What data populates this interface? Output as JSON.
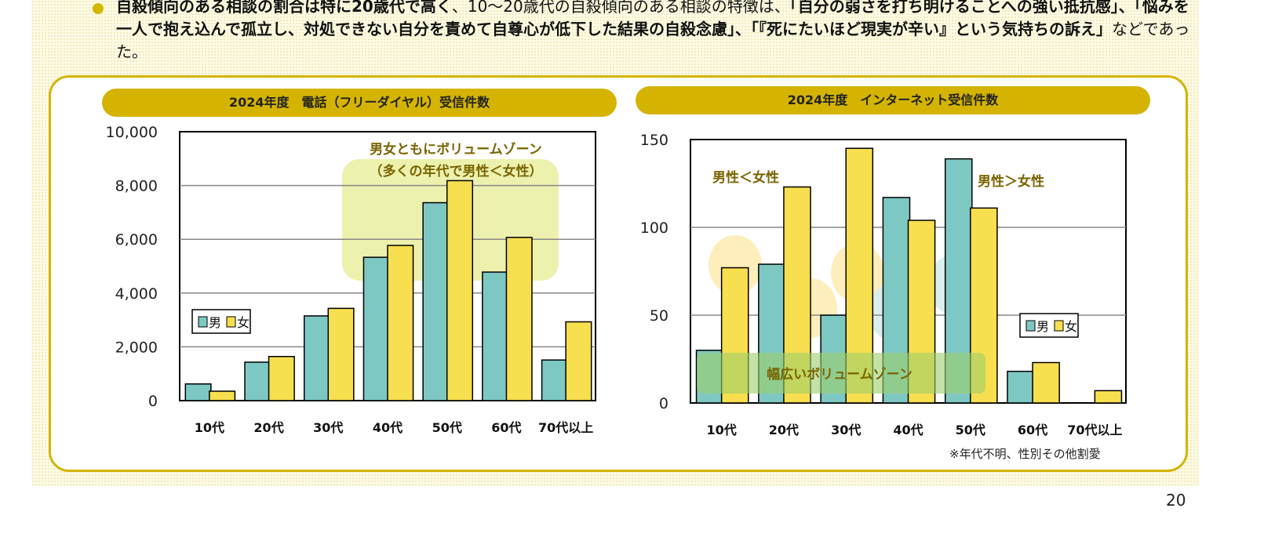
{
  "summary": {
    "bold1": "自殺傾向のある相談の割合は特に20歳代で高く",
    "normal1": "、10〜20歳代の自殺傾向のある相談の特徴は、",
    "bold2": "「自分の弱さを打ち明けることへの強い抵抗感」、「悩みを一人で抱え込んで孤立し、対処できない自分を責めて自尊心が低下した結果の自殺念慮」、「『死にたいほど現実が辛い』という気持ちの訴え」",
    "normal2": "などであった。"
  },
  "colors": {
    "male": "#7ec8c4",
    "female": "#f7df4f",
    "accent": "#d4b400",
    "annotation": "#7a6400"
  },
  "footnote": "※年代不明、性別その他割愛",
  "page_number": "20",
  "chart_data": [
    {
      "type": "bar",
      "title": "2024年度　電話（フリーダイヤル）受信件数",
      "categories": [
        "10代",
        "20代",
        "30代",
        "40代",
        "50代",
        "60代",
        "70代以上"
      ],
      "series": [
        {
          "name": "男",
          "values": [
            620,
            1430,
            3150,
            5330,
            7360,
            4780,
            1510
          ]
        },
        {
          "name": "女",
          "values": [
            350,
            1640,
            3430,
            5770,
            8180,
            6070,
            2930
          ]
        }
      ],
      "ylim": [
        0,
        10000
      ],
      "yticks": [
        "0",
        "2,000",
        "4,000",
        "6,000",
        "8,000",
        "10,000"
      ],
      "grid": true,
      "legend": "left",
      "annotations": [
        "男女ともにボリュームゾーン",
        "（多くの年代で男性＜女性）"
      ]
    },
    {
      "type": "bar",
      "title": "2024年度　インターネット受信件数",
      "categories": [
        "10代",
        "20代",
        "30代",
        "40代",
        "50代",
        "60代",
        "70代以上"
      ],
      "series": [
        {
          "name": "男",
          "values": [
            30,
            79,
            50,
            117,
            139,
            18,
            0
          ]
        },
        {
          "name": "女",
          "values": [
            77,
            123,
            145,
            104,
            111,
            23,
            7
          ]
        }
      ],
      "ylim": [
        0,
        150
      ],
      "yticks": [
        "0",
        "50",
        "100",
        "150"
      ],
      "grid": true,
      "legend": "right",
      "annotations": [
        "男性＜女性",
        "男性＞女性",
        "幅広いボリュームゾーン"
      ]
    }
  ]
}
